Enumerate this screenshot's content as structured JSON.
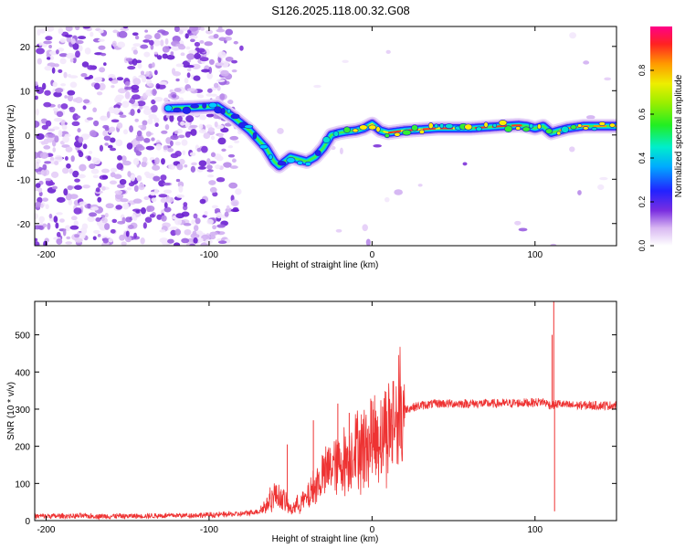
{
  "title": "S126.2025.118.00.32.G08",
  "chart_data": [
    {
      "type": "heatmap",
      "name": "spectrogram",
      "xlabel": "Height of straight line (km)",
      "ylabel": "Frequency (Hz)",
      "xlim": [
        -207,
        150
      ],
      "ylim": [
        -25,
        24.5
      ],
      "xticks": [
        -200,
        -100,
        0,
        100
      ],
      "yticks": [
        -20,
        -10,
        0,
        10,
        20
      ],
      "ridge": {
        "description": "dominant frequency trace vs height",
        "x": [
          -125,
          -110,
          -95,
          -85,
          -75,
          -65,
          -60,
          -57,
          -50,
          -45,
          -40,
          -35,
          -30,
          -25,
          -20,
          -15,
          -10,
          -5,
          0,
          5,
          10,
          20,
          40,
          60,
          80,
          90,
          95,
          100,
          105,
          110,
          115,
          120,
          130,
          150
        ],
        "y": [
          6,
          6.2,
          6.5,
          4,
          1,
          -3,
          -6,
          -7,
          -5,
          -5.5,
          -6,
          -5,
          -3,
          0,
          0.5,
          0.8,
          1,
          1.5,
          2.5,
          1,
          0.5,
          1,
          1.5,
          1.5,
          2,
          2.2,
          2,
          1.5,
          2,
          0.5,
          1,
          1.5,
          2,
          2
        ]
      },
      "colorbar": {
        "label": "Normalized spectral amplitude",
        "range": [
          0,
          1
        ],
        "ticks": [
          0.0,
          0.2,
          0.4,
          0.6,
          0.8
        ]
      }
    },
    {
      "type": "line",
      "name": "snr",
      "xlabel": "Height of straight line (km)",
      "ylabel": "SNR (10 * v/v)",
      "xlim": [
        -207,
        150
      ],
      "ylim": [
        0,
        590
      ],
      "xticks": [
        -200,
        -100,
        0,
        100
      ],
      "yticks": [
        0,
        100,
        200,
        300,
        400,
        500
      ],
      "color": "#ee3333",
      "trend": {
        "x": [
          -207,
          -150,
          -100,
          -80,
          -70,
          -65,
          -60,
          -55,
          -50,
          -45,
          -40,
          -35,
          -30,
          -25,
          -20,
          -15,
          -10,
          -5,
          0,
          5,
          10,
          15,
          20,
          30,
          40,
          60,
          80,
          100,
          105,
          110,
          115,
          120,
          150
        ],
        "y": [
          12,
          12,
          15,
          18,
          25,
          40,
          70,
          60,
          30,
          45,
          60,
          90,
          120,
          150,
          150,
          170,
          200,
          200,
          220,
          230,
          250,
          280,
          300,
          310,
          315,
          315,
          315,
          318,
          320,
          310,
          315,
          310,
          310
        ]
      },
      "spikes": [
        {
          "x": 111.5,
          "y": 590
        },
        {
          "x": 110.5,
          "y": 500
        },
        {
          "x": 112,
          "y": 25
        },
        {
          "x": -52,
          "y": 205
        },
        {
          "x": -21,
          "y": 315
        },
        {
          "x": -36,
          "y": 270
        },
        {
          "x": -14,
          "y": 290
        }
      ]
    }
  ]
}
